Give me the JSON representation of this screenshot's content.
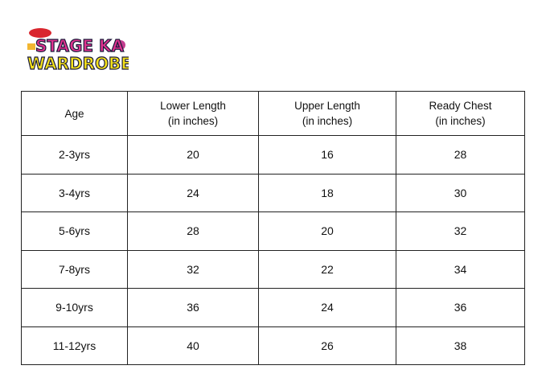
{
  "logo": {
    "text_line1": "STAGE KA",
    "text_line2": "WARDROBE"
  },
  "table": {
    "headers": [
      [
        "Age"
      ],
      [
        "Lower Length",
        "(in inches)"
      ],
      [
        "Upper Length",
        "(in inches)"
      ],
      [
        "Ready Chest",
        "(in inches)"
      ]
    ],
    "rows": [
      [
        "2-3yrs",
        "20",
        "16",
        "28"
      ],
      [
        "3-4yrs",
        "24",
        "18",
        "30"
      ],
      [
        "5-6yrs",
        "28",
        "20",
        "32"
      ],
      [
        "7-8yrs",
        "32",
        "22",
        "34"
      ],
      [
        "9-10yrs",
        "36",
        "24",
        "36"
      ],
      [
        "11-12yrs",
        "40",
        "26",
        "38"
      ]
    ]
  }
}
